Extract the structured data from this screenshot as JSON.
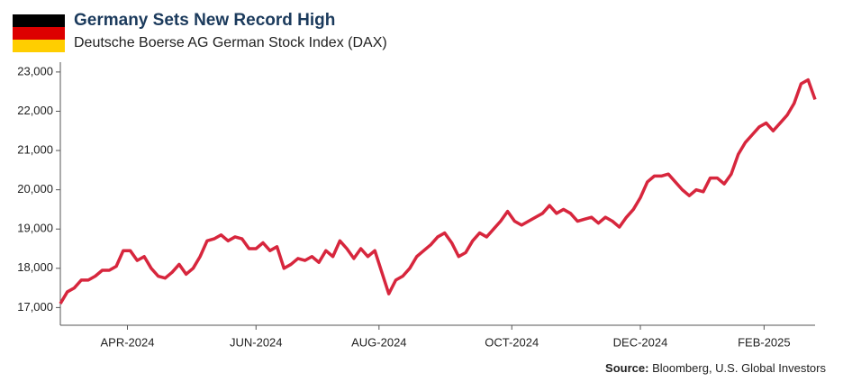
{
  "chart_data": {
    "type": "line",
    "title": "Germany Sets New Record High",
    "subtitle": "Deutsche Boerse AG German Stock Index (DAX)",
    "source_label": "Source:",
    "source": "Bloomberg, U.S. Global Investors",
    "series": [
      {
        "name": "DAX",
        "color": "#d7263d",
        "values": [
          17100,
          17400,
          17500,
          17700,
          17700,
          17800,
          17950,
          17950,
          18050,
          18450,
          18450,
          18200,
          18300,
          18000,
          17800,
          17750,
          17900,
          18100,
          17850,
          18000,
          18300,
          18700,
          18750,
          18850,
          18700,
          18800,
          18750,
          18500,
          18500,
          18650,
          18450,
          18550,
          18000,
          18100,
          18250,
          18200,
          18300,
          18150,
          18450,
          18300,
          18700,
          18500,
          18250,
          18500,
          18300,
          18450,
          17900,
          17350,
          17700,
          17800,
          18000,
          18300,
          18450,
          18600,
          18800,
          18900,
          18650,
          18300,
          18400,
          18700,
          18900,
          18800,
          19000,
          19200,
          19450,
          19200,
          19100,
          19200,
          19300,
          19400,
          19600,
          19400,
          19500,
          19400,
          19200,
          19250,
          19300,
          19150,
          19300,
          19200,
          19050,
          19300,
          19500,
          19800,
          20200,
          20350,
          20350,
          20400,
          20200,
          20000,
          19850,
          20000,
          19950,
          20300,
          20300,
          20150,
          20400,
          20900,
          21200,
          21400,
          21600,
          21700,
          21500,
          21700,
          21900,
          22200,
          22700,
          22800,
          22300
        ]
      }
    ],
    "xlim": [
      0,
      108
    ],
    "xticks": [
      {
        "value": 9.6,
        "label": "APR-2024"
      },
      {
        "value": 28,
        "label": "JUN-2024"
      },
      {
        "value": 45.6,
        "label": "AUG-2024"
      },
      {
        "value": 64.6,
        "label": "OCT-2024"
      },
      {
        "value": 83,
        "label": "DEC-2024"
      },
      {
        "value": 100.7,
        "label": "FEB-2025"
      }
    ],
    "ylim": [
      16550,
      23250
    ],
    "yticks": [
      {
        "value": 17000,
        "label": "17,000"
      },
      {
        "value": 18000,
        "label": "18,000"
      },
      {
        "value": 19000,
        "label": "19,000"
      },
      {
        "value": 20000,
        "label": "20,000"
      },
      {
        "value": 21000,
        "label": "21,000"
      },
      {
        "value": 22000,
        "label": "22,000"
      },
      {
        "value": 23000,
        "label": "23,000"
      }
    ],
    "grid": false
  }
}
